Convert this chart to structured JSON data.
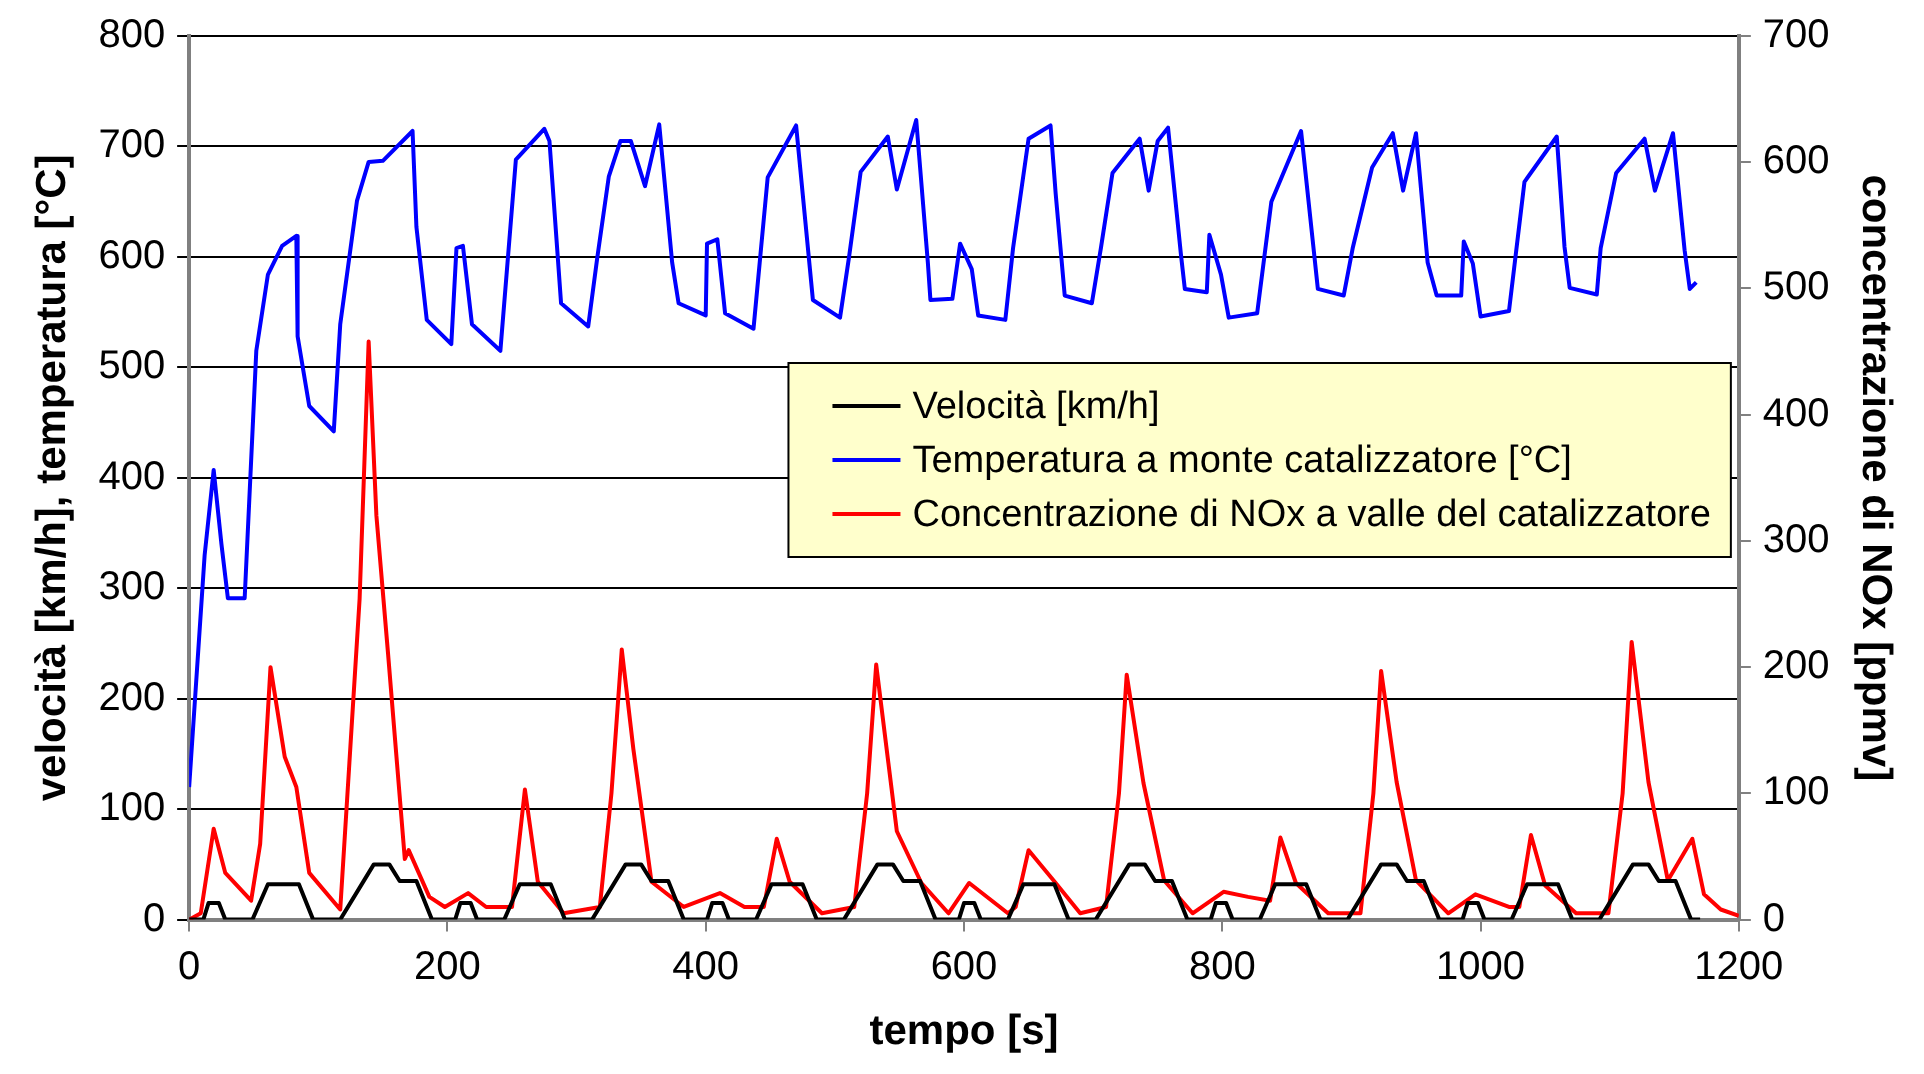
{
  "chart_data": {
    "type": "line",
    "xlabel": "tempo [s]",
    "ylabel": "velocità [km/h], temperatura [°C]",
    "y2label": "concentrazione di NOx [ppmv]",
    "xlim": [
      0,
      1200
    ],
    "xticks": [
      0,
      200,
      400,
      600,
      800,
      1000,
      1200
    ],
    "ylim": [
      0,
      800
    ],
    "yticks": [
      0,
      100,
      200,
      300,
      400,
      500,
      600,
      700,
      800
    ],
    "y2lim": [
      0,
      700
    ],
    "y2ticks": [
      0,
      100,
      200,
      300,
      400,
      500,
      600,
      700
    ],
    "grid": "y",
    "legend": "top right",
    "marker": "none",
    "line_style": "solid",
    "series": [
      {
        "name": "Velocità [km/h]",
        "color": "#000000",
        "x": [
          0,
          11,
          15,
          23,
          28,
          49,
          61,
          85,
          96,
          117,
          143,
          155,
          163,
          176,
          188,
          195,
          206,
          210,
          218,
          223,
          244,
          256,
          280,
          291,
          312,
          338,
          350,
          358,
          371,
          383,
          390,
          401,
          405,
          413,
          418,
          439,
          451,
          475,
          486,
          507,
          533,
          545,
          553,
          566,
          578,
          585,
          596,
          600,
          608,
          613,
          634,
          646,
          670,
          681,
          702,
          728,
          740,
          748,
          761,
          773,
          780,
          791,
          795,
          803,
          808,
          829,
          841,
          865,
          876,
          897,
          923,
          935,
          943,
          956,
          968,
          975,
          986,
          990,
          998,
          1003,
          1024,
          1036,
          1060,
          1071,
          1092,
          1118,
          1130,
          1138,
          1151,
          1163,
          1170
        ],
        "values": [
          0,
          0,
          15,
          15,
          0,
          0,
          32,
          32,
          0,
          0,
          50,
          50,
          35,
          35,
          0,
          0,
          0,
          15,
          15,
          0,
          0,
          32,
          32,
          0,
          0,
          50,
          50,
          35,
          35,
          0,
          0,
          0,
          15,
          15,
          0,
          0,
          32,
          32,
          0,
          0,
          50,
          50,
          35,
          35,
          0,
          0,
          0,
          15,
          15,
          0,
          0,
          32,
          32,
          0,
          0,
          50,
          50,
          35,
          35,
          0,
          0,
          0,
          15,
          15,
          0,
          0,
          32,
          32,
          0,
          0,
          50,
          50,
          35,
          35,
          0,
          0,
          0,
          15,
          15,
          0,
          0,
          32,
          32,
          0,
          0,
          50,
          50,
          35,
          35,
          0,
          0
        ]
      },
      {
        "name": "Temperatura a monte catalizzatore [°C]",
        "color": "#0000ff",
        "x": [
          0,
          12,
          19,
          25,
          30,
          43,
          52,
          61,
          72,
          83,
          84,
          93,
          112,
          117,
          130,
          139,
          150,
          173,
          176,
          184,
          203,
          207,
          212,
          219,
          241,
          253,
          275,
          279,
          288,
          309,
          316,
          325,
          334,
          342,
          353,
          364,
          374,
          379,
          400,
          401,
          409,
          415,
          437,
          448,
          470,
          483,
          504,
          511,
          520,
          541,
          548,
          563,
          572,
          574,
          591,
          597,
          606,
          611,
          632,
          638,
          650,
          667,
          671,
          678,
          699,
          706,
          715,
          736,
          743,
          750,
          758,
          768,
          771,
          788,
          790,
          799,
          805,
          827,
          838,
          861,
          874,
          894,
          901,
          916,
          932,
          940,
          950,
          959,
          966,
          985,
          987,
          994,
          1000,
          1022,
          1034,
          1059,
          1065,
          1069,
          1090,
          1093,
          1105,
          1127,
          1135,
          1149,
          1158,
          1162,
          1167
        ],
        "values": [
          120,
          330,
          407,
          340,
          291,
          291,
          515,
          584,
          610,
          619,
          528,
          465,
          442,
          539,
          651,
          686,
          687,
          714,
          627,
          543,
          521,
          608,
          610,
          539,
          515,
          688,
          716,
          705,
          558,
          537,
          599,
          673,
          705,
          705,
          664,
          720,
          595,
          558,
          547,
          612,
          616,
          549,
          535,
          672,
          719,
          561,
          545,
          600,
          677,
          709,
          661,
          724,
          595,
          561,
          562,
          612,
          589,
          547,
          543,
          608,
          707,
          719,
          657,
          565,
          558,
          608,
          676,
          707,
          660,
          705,
          717,
          602,
          571,
          568,
          620,
          584,
          545,
          549,
          650,
          714,
          571,
          565,
          608,
          681,
          712,
          660,
          712,
          595,
          565,
          565,
          614,
          594,
          546,
          551,
          668,
          709,
          609,
          572,
          566,
          608,
          676,
          707,
          660,
          712,
          606,
          571,
          577
        ]
      },
      {
        "name": "Concentrazione di NOx a valle del catalizzatore",
        "color": "#ff0000",
        "axis": "y2",
        "x": [
          0,
          9,
          19,
          28,
          48,
          55,
          63,
          74,
          83,
          93,
          117,
          132,
          139,
          145,
          154,
          167,
          170,
          186,
          198,
          216,
          230,
          250,
          260,
          270,
          290,
          318,
          327,
          335,
          344,
          358,
          383,
          411,
          430,
          445,
          455,
          465,
          490,
          515,
          525,
          532,
          548,
          567,
          588,
          604,
          634,
          640,
          650,
          671,
          690,
          710,
          720,
          726,
          739,
          755,
          777,
          801,
          820,
          837,
          845,
          857,
          882,
          907,
          917,
          923,
          935,
          950,
          975,
          996,
          1022,
          1030,
          1039,
          1050,
          1074,
          1099,
          1110,
          1117,
          1130,
          1145,
          1164,
          1173,
          1186,
          1200
        ],
        "values": [
          0,
          5,
          72,
          37,
          15,
          60,
          200,
          129,
          105,
          37,
          8,
          254,
          458,
          320,
          211,
          48,
          55,
          18,
          10,
          21,
          10,
          10,
          103,
          30,
          5,
          10,
          100,
          214,
          135,
          30,
          10,
          21,
          10,
          10,
          64,
          30,
          5,
          10,
          100,
          202,
          70,
          29,
          5,
          29,
          5,
          10,
          55,
          29,
          5,
          10,
          100,
          194,
          108,
          31,
          5,
          22,
          18,
          15,
          65,
          29,
          5,
          5,
          100,
          197,
          109,
          31,
          5,
          20,
          10,
          10,
          67,
          27,
          5,
          5,
          100,
          220,
          109,
          31,
          64,
          20,
          8,
          3
        ]
      }
    ]
  }
}
